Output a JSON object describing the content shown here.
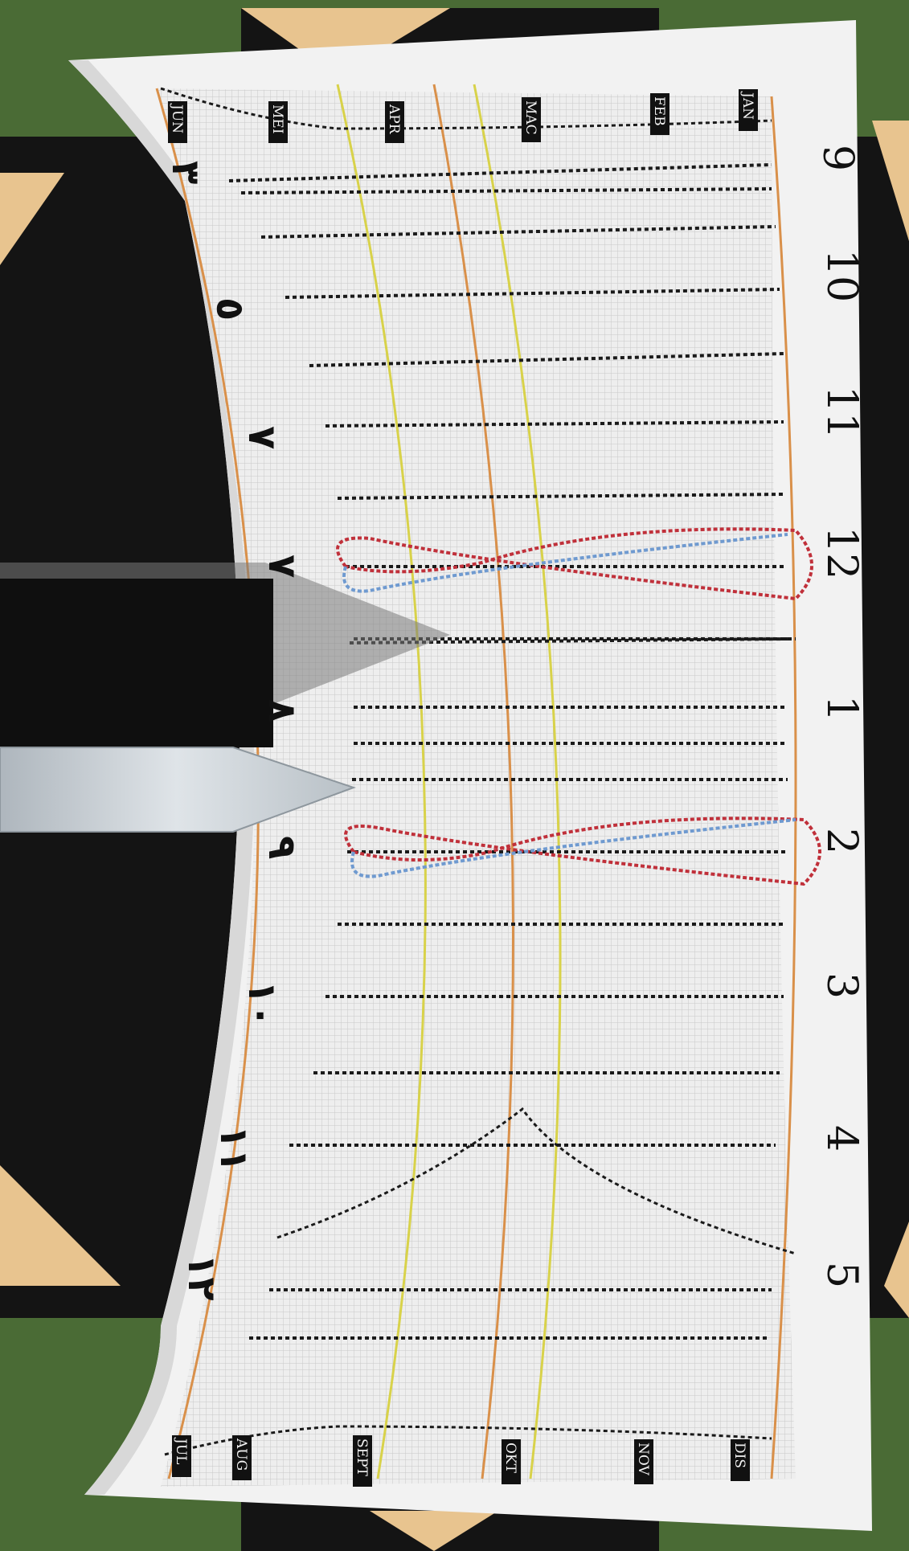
{
  "scene": {
    "description_hidden": "",
    "colors": {
      "grass": "#4a6b35",
      "black_base": "#141414",
      "tan_tile": "#e8c48f",
      "dial_white": "#f2f2f2",
      "dial_grid": "#d9d9d9",
      "gnomon": "#c9d0d6",
      "shadow": "#2a2a2a",
      "hour_line": "#1a1a1a",
      "orange_curve": "#d9904a",
      "yellow_curve": "#d8d24a",
      "loop_red": "#c0303a",
      "loop_blue": "#6f9ad0"
    }
  },
  "hour_numbers": [
    "9",
    "10",
    "11",
    "12",
    "1",
    "2",
    "3",
    "4",
    "5"
  ],
  "arabic_numbers": [
    "٣",
    "٥",
    "٧",
    "٧",
    "٨",
    "٩",
    "١٠",
    "١١",
    "١٢"
  ],
  "months_top": [
    "JUN",
    "MEI",
    "APR",
    "MAC",
    "FEB",
    "JAN"
  ],
  "months_bottom": [
    "JUL",
    "AUG",
    "SEPT",
    "OKT",
    "NOV",
    "DIS"
  ]
}
